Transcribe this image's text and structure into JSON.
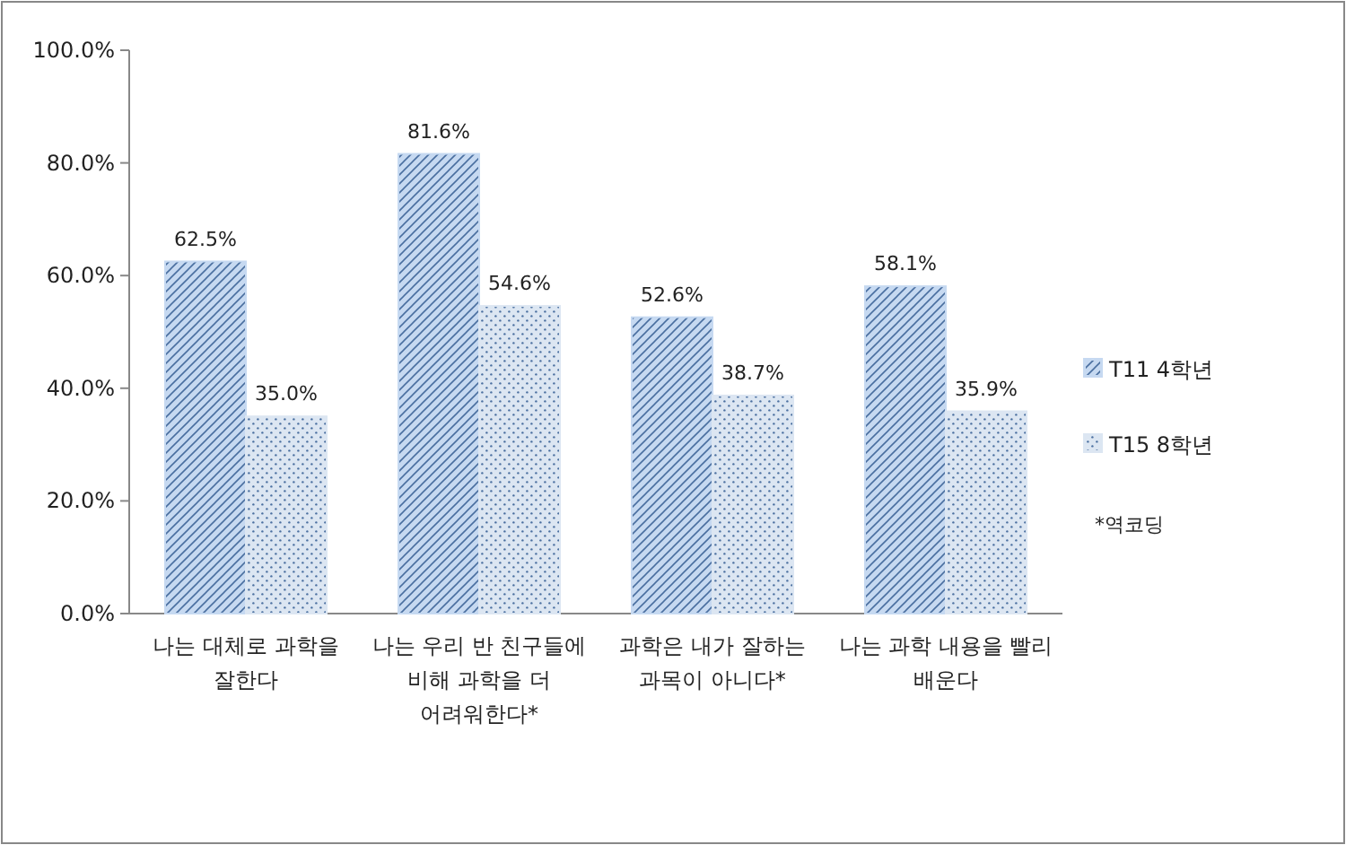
{
  "chart_data": {
    "type": "bar",
    "categories": [
      "나는 대체로 과학을 잘한다",
      "나는 우리 반 친구들에 비해 과학을 더 어려워한다*",
      "과학은 내가 잘하는 과목이 아니다*",
      "나는 과학 내용을 빨리 배운다"
    ],
    "series": [
      {
        "name": "T11 4학년",
        "color": "#c6d9f1",
        "values": [
          62.5,
          81.6,
          52.6,
          58.1
        ],
        "value_labels": [
          "62.5%",
          "81.6%",
          "52.6%",
          "58.1%"
        ]
      },
      {
        "name": "T15 8학년",
        "color": "#dce6f2",
        "values": [
          35.0,
          54.6,
          38.7,
          35.9
        ],
        "value_labels": [
          "35.0%",
          "54.6%",
          "38.7%",
          "35.9%"
        ]
      }
    ],
    "ylim": [
      0,
      100
    ],
    "yticks": [
      {
        "value": 0,
        "label": "0.0%"
      },
      {
        "value": 20,
        "label": "20.0%"
      },
      {
        "value": 40,
        "label": "40.0%"
      },
      {
        "value": 60,
        "label": "60.0%"
      },
      {
        "value": 80,
        "label": "80.0%"
      },
      {
        "value": 100,
        "label": "100.0%"
      }
    ],
    "legend": "right",
    "annotations": [
      "*역코딩"
    ]
  }
}
